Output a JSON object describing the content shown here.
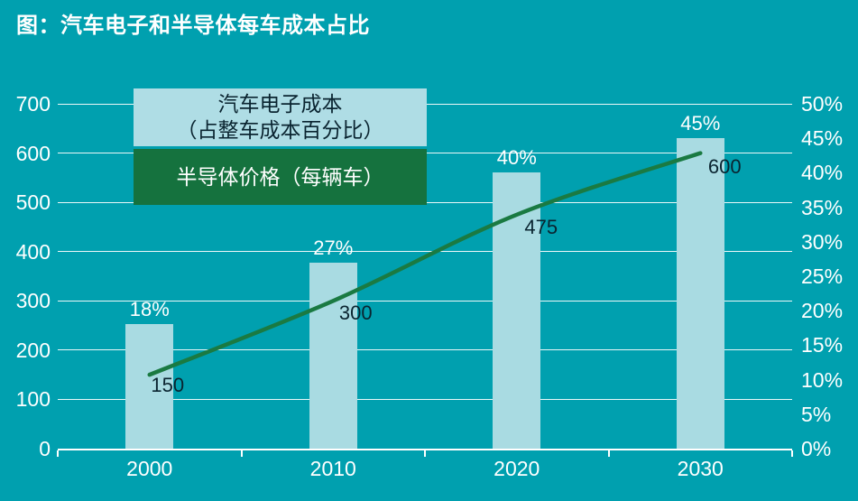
{
  "title": "图：汽车电子和半导体每车成本占比",
  "colors": {
    "background": "#00A0AF",
    "bar_fill": "#A9DBE2",
    "line": "#1A7A42",
    "legend_electronics_bg": "#AFDDE5",
    "legend_semiconductor_bg": "#15723E",
    "grid": "#FFFFFF",
    "axis_text": "#FFFFFF",
    "dark_label": "#0A2430"
  },
  "legend": {
    "electronics_line1": "汽车电子成本",
    "electronics_line2": "（占整车成本百分比）",
    "semiconductor": "半导体价格（每辆车）"
  },
  "chart_data": {
    "type": "bar",
    "subtype": "combo-bar-line-dual-axis",
    "title": "图：汽车电子和半导体每车成本占比",
    "categories": [
      "2000",
      "2010",
      "2020",
      "2030"
    ],
    "series": [
      {
        "name": "汽车电子成本（占整车成本百分比）",
        "type": "bar",
        "axis": "right",
        "values": [
          18,
          27,
          40,
          45
        ],
        "labels": [
          "18%",
          "27%",
          "40%",
          "45%"
        ],
        "unit": "%"
      },
      {
        "name": "半导体价格（每辆车）",
        "type": "line",
        "axis": "left",
        "values": [
          150,
          300,
          475,
          600
        ],
        "labels": [
          "150",
          "300",
          "475",
          "600"
        ]
      }
    ],
    "left_axis": {
      "min": 0,
      "max": 700,
      "step": 100,
      "ticks": [
        "0",
        "100",
        "200",
        "300",
        "400",
        "500",
        "600",
        "700"
      ]
    },
    "right_axis": {
      "min": 0,
      "max": 50,
      "step": 5,
      "ticks": [
        "0%",
        "5%",
        "10%",
        "15%",
        "20%",
        "25%",
        "30%",
        "35%",
        "40%",
        "45%",
        "50%"
      ]
    },
    "grid": "horizontal gridlines from left (primary) axis, white",
    "legend_position": "overlay top-left of plot area"
  }
}
